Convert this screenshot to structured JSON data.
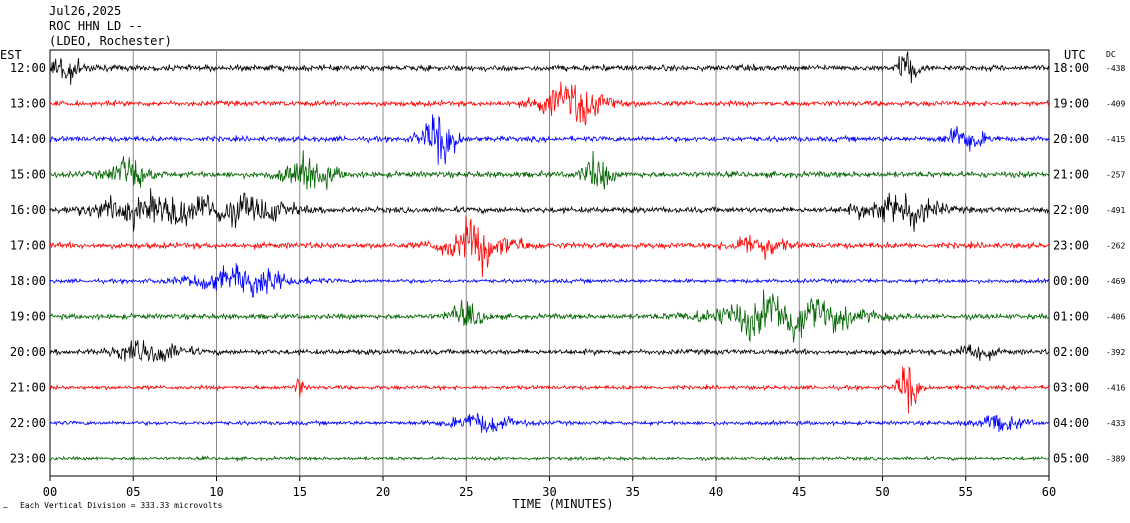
{
  "header": {
    "date": "Jul26,2025",
    "station": "ROC HHN LD --",
    "network": "(LDEO, Rochester)"
  },
  "left_axis_label": "EST",
  "right_axis_label": "UTC",
  "dc_label": "DC",
  "footer": {
    "scale_note": "Each Vertical Division =  333.33 microvolts"
  },
  "chart_data": {
    "type": "line",
    "title": "",
    "xlabel": "TIME (MINUTES)",
    "ylabel": "",
    "xlim": [
      0,
      60
    ],
    "x_ticks": [
      "00",
      "05",
      "10",
      "15",
      "20",
      "25",
      "30",
      "35",
      "40",
      "45",
      "50",
      "55",
      "60"
    ],
    "grid": "vertical every 5 minutes",
    "colors": {
      "black": "#000000",
      "red": "#ff0000",
      "blue": "#0000ff",
      "green": "#006400"
    },
    "traces": [
      {
        "est": "12:00",
        "utc": "18:00",
        "dc": "-438",
        "color": "black",
        "amp": 0.9,
        "events": [
          {
            "t": 0.5,
            "w": 1.5,
            "a": 1.2
          },
          {
            "t": 51.5,
            "w": 0.5,
            "a": 2.0
          }
        ]
      },
      {
        "est": "13:00",
        "utc": "19:00",
        "dc": "-409",
        "color": "red",
        "amp": 0.8,
        "events": [
          {
            "t": 31.5,
            "w": 2.0,
            "a": 1.8
          }
        ]
      },
      {
        "est": "14:00",
        "utc": "20:00",
        "dc": "-415",
        "color": "blue",
        "amp": 0.8,
        "events": [
          {
            "t": 23.3,
            "w": 1.0,
            "a": 2.5
          },
          {
            "t": 55.0,
            "w": 1.2,
            "a": 1.0
          }
        ]
      },
      {
        "est": "15:00",
        "utc": "21:00",
        "dc": "-257",
        "color": "green",
        "amp": 0.9,
        "events": [
          {
            "t": 4.8,
            "w": 1.2,
            "a": 1.5
          },
          {
            "t": 15.5,
            "w": 1.5,
            "a": 1.5
          },
          {
            "t": 32.8,
            "w": 0.8,
            "a": 1.8
          }
        ]
      },
      {
        "est": "16:00",
        "utc": "22:00",
        "dc": "-491",
        "color": "black",
        "amp": 0.9,
        "events": [
          {
            "t": 7.0,
            "w": 4.0,
            "a": 1.5
          },
          {
            "t": 12.5,
            "w": 2.0,
            "a": 1.0
          },
          {
            "t": 51.0,
            "w": 2.0,
            "a": 2.0
          }
        ]
      },
      {
        "est": "17:00",
        "utc": "23:00",
        "dc": "-262",
        "color": "red",
        "amp": 0.9,
        "events": [
          {
            "t": 25.8,
            "w": 2.0,
            "a": 2.0
          },
          {
            "t": 42.5,
            "w": 1.5,
            "a": 1.0
          }
        ]
      },
      {
        "est": "18:00",
        "utc": "00:00",
        "dc": "-469",
        "color": "blue",
        "amp": 0.6,
        "events": [
          {
            "t": 11.5,
            "w": 3.0,
            "a": 1.2
          }
        ]
      },
      {
        "est": "19:00",
        "utc": "01:00",
        "dc": "-406",
        "color": "green",
        "amp": 0.8,
        "events": [
          {
            "t": 25.0,
            "w": 1.0,
            "a": 1.2
          },
          {
            "t": 44.0,
            "w": 4.0,
            "a": 2.0
          }
        ]
      },
      {
        "est": "20:00",
        "utc": "02:00",
        "dc": "-392",
        "color": "black",
        "amp": 0.8,
        "events": [
          {
            "t": 6.0,
            "w": 2.0,
            "a": 1.0
          },
          {
            "t": 55.5,
            "w": 1.0,
            "a": 0.8
          }
        ]
      },
      {
        "est": "21:00",
        "utc": "03:00",
        "dc": "-416",
        "color": "red",
        "amp": 0.6,
        "events": [
          {
            "t": 51.5,
            "w": 0.6,
            "a": 2.5
          },
          {
            "t": 15.0,
            "w": 0.3,
            "a": 1.0
          }
        ]
      },
      {
        "est": "22:00",
        "utc": "04:00",
        "dc": "-433",
        "color": "blue",
        "amp": 0.6,
        "events": [
          {
            "t": 26.0,
            "w": 2.0,
            "a": 0.8
          },
          {
            "t": 57.0,
            "w": 1.5,
            "a": 0.7
          }
        ]
      },
      {
        "est": "23:00",
        "utc": "05:00",
        "dc": "-389",
        "color": "green",
        "amp": 0.5,
        "events": []
      }
    ]
  }
}
